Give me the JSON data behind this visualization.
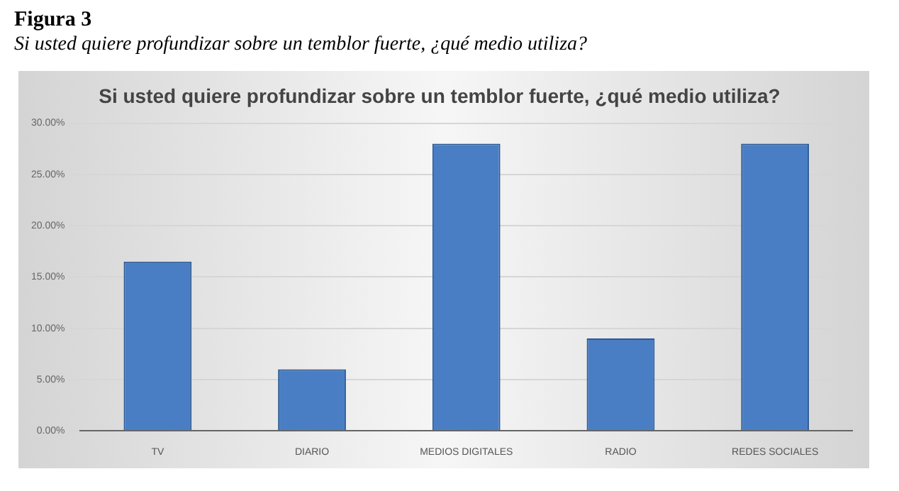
{
  "chart_data": {
    "type": "bar",
    "title": "Si usted quiere profundizar sobre un temblor fuerte, ¿qué medio utiliza?",
    "annotations": [
      "Figura 3",
      "Si usted quiere profundizar sobre un temblor fuerte, ¿qué medio utiliza?"
    ],
    "categories": [
      "TV",
      "DIARIO",
      "MEDIOS DIGITALES",
      "RADIO",
      "REDES SOCIALES"
    ],
    "values": [
      16.5,
      6,
      28,
      9,
      28
    ],
    "color": "#4a7ec4",
    "ylim": [
      0,
      30
    ],
    "yticks": [
      {
        "value": 0,
        "label": "0.00%"
      },
      {
        "value": 5,
        "label": "5.00%"
      },
      {
        "value": 10,
        "label": "10.00%"
      },
      {
        "value": 15,
        "label": "15.00%"
      },
      {
        "value": 20,
        "label": "20.00%"
      },
      {
        "value": 25,
        "label": "25.00%"
      },
      {
        "value": 30,
        "label": "30.00%"
      }
    ],
    "grid": "y",
    "legend": false
  }
}
